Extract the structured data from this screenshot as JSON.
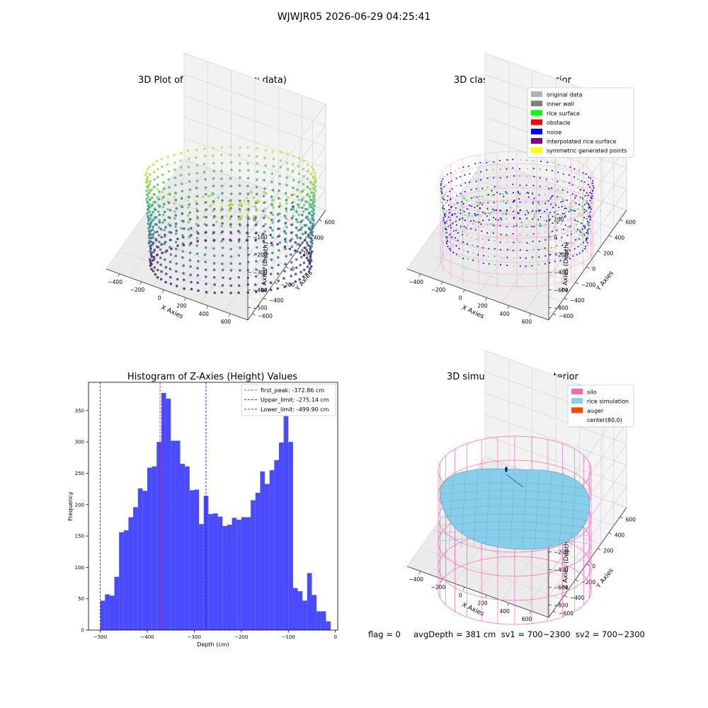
{
  "suptitle": "WJWJR05 2026-06-29 04:25:41",
  "footer": "flag = 0     avgDepth = 381 cm  sv1 = 700~2300  sv2 = 700~2300",
  "colors": {
    "original_data": "#b3b3b3",
    "inner_wall": "#808080",
    "rice_surface": "#00ff00",
    "obstacle": "#ff0000",
    "noise": "#0000ff",
    "interpolated_rice_surface": "#800080",
    "symmetric_generated_points": "#ffff00",
    "silo": "#ff69b4",
    "rice_simulation": "#87ceeb",
    "auger": "#ff4500",
    "histogram_bar": "#4a4aff",
    "first_peak_line": "#ff0000",
    "limit_line": "#0000ff"
  },
  "chart_data": [
    {
      "type": "scatter",
      "panel": "raw-3d",
      "title": "3D Plot of Silo Interior(row data)",
      "xlabel": "X Axies",
      "ylabel": "Y Axies",
      "zlabel": "Z Axies (Depth)",
      "x_ticks": [
        "−400",
        "−200",
        "0",
        "200",
        "400",
        "600"
      ],
      "y_ticks": [
        "−600",
        "−400",
        "−200",
        "0",
        "200",
        "400",
        "600"
      ],
      "z_ticks": [
        "0",
        "−100",
        "−200",
        "−300",
        "−400",
        "−500"
      ],
      "xlim": [
        -500,
        700
      ],
      "ylim": [
        -650,
        650
      ],
      "zlim": [
        -520,
        20
      ],
      "colormap": "viridis"
    },
    {
      "type": "scatter",
      "panel": "classify-3d",
      "title": "3D classify of Silo Interior",
      "xlabel": "X Axies",
      "ylabel": "Y Axies",
      "zlabel": "Z Axies (Depth)",
      "x_ticks": [
        "−400",
        "−200",
        "0",
        "200",
        "400",
        "600"
      ],
      "y_ticks": [
        "−600",
        "−400",
        "−200",
        "0",
        "200",
        "400",
        "600"
      ],
      "z_ticks": [
        "200",
        "0",
        "−200",
        "−400",
        "−600",
        "−800"
      ],
      "xlim": [
        -500,
        700
      ],
      "ylim": [
        -650,
        650
      ],
      "zlim": [
        -850,
        250
      ],
      "legend": [
        "original data",
        "inner wall",
        "rice surface",
        "obstacle",
        "noise",
        "interpolated rice surface",
        "symmetric generated points"
      ],
      "legend_position": "top-right"
    },
    {
      "type": "bar",
      "panel": "histogram",
      "title": "Histogram of Z-Axies (Height) Values",
      "xlabel": "Depth (cm)",
      "ylabel": "Frequency",
      "bin_start": -500,
      "bin_width": 10,
      "values": [
        47,
        57,
        55,
        85,
        156,
        159,
        180,
        196,
        226,
        222,
        259,
        261,
        300,
        378,
        369,
        302,
        302,
        265,
        261,
        223,
        224,
        169,
        214,
        185,
        186,
        181,
        166,
        168,
        179,
        176,
        180,
        180,
        207,
        219,
        253,
        233,
        255,
        271,
        299,
        341,
        300,
        67,
        62,
        47,
        91,
        56,
        30,
        30,
        14
      ],
      "xlim": [
        -525,
        5
      ],
      "ylim": [
        0,
        395
      ],
      "x_ticks": [
        -500,
        -400,
        -300,
        -200,
        -100,
        0
      ],
      "y_ticks": [
        0,
        50,
        100,
        150,
        200,
        250,
        300,
        350
      ],
      "vlines": [
        {
          "x": -372.86,
          "label": "first_peak: -372.86 cm",
          "color": "#ff0000"
        },
        {
          "x": -275.14,
          "label": "Upper_limit: -275.14 cm",
          "color": "#0000ff"
        },
        {
          "x": -499.9,
          "label": "Lower_limit: -499.90 cm",
          "color": "#0000ff"
        }
      ],
      "legend_position": "top-right"
    },
    {
      "type": "surface",
      "panel": "simulation-3d",
      "title": "3D simulation of Silo Interior",
      "xlabel": "X Axies",
      "ylabel": "Y Axies",
      "zlabel": "Z Axies (Depth)",
      "x_ticks": [
        "−400",
        "−200",
        "0",
        "200",
        "400",
        "600"
      ],
      "y_ticks": [
        "−600",
        "−400",
        "−200",
        "0",
        "200",
        "400",
        "600"
      ],
      "z_ticks": [
        "200",
        "0",
        "−200",
        "−400",
        "−600",
        "−800"
      ],
      "xlim": [
        -500,
        700
      ],
      "ylim": [
        -650,
        650
      ],
      "zlim": [
        -850,
        250
      ],
      "legend": [
        "silo",
        "rice simulation",
        "auger",
        "center(80,0)"
      ],
      "legend_position": "top-right"
    }
  ]
}
